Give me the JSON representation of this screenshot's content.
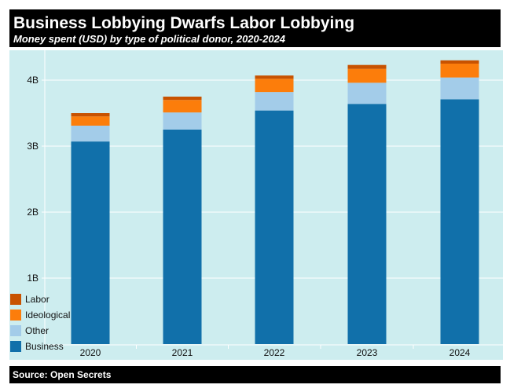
{
  "header": {
    "title": "Business Lobbying Dwarfs Labor Lobbying",
    "subtitle": "Money spent (USD) by type of political donor, 2020-2024"
  },
  "footer": {
    "source": "Source: Open Secrets"
  },
  "chart_data": {
    "type": "bar",
    "stacked": true,
    "title": "Business Lobbying Dwarfs Labor Lobbying",
    "subtitle": "Money spent (USD) by type of political donor, 2020-2024",
    "xlabel": "",
    "ylabel": "",
    "categories": [
      "2020",
      "2021",
      "2022",
      "2023",
      "2024"
    ],
    "ylim": [
      0,
      4.4
    ],
    "yticks": [
      1,
      2,
      3,
      4
    ],
    "ytick_labels": [
      "1B",
      "2B",
      "3B",
      "4B"
    ],
    "unit": "billions USD",
    "grid": true,
    "legend_position": "bottom-left",
    "background": "#cdedef",
    "series": [
      {
        "name": "Business",
        "color": "#1170aa",
        "values": [
          3.07,
          3.25,
          3.54,
          3.64,
          3.71
        ]
      },
      {
        "name": "Other",
        "color": "#a3cce9",
        "values": [
          0.24,
          0.26,
          0.28,
          0.32,
          0.33
        ]
      },
      {
        "name": "Ideological",
        "color": "#fc7d0b",
        "values": [
          0.14,
          0.19,
          0.2,
          0.21,
          0.21
        ]
      },
      {
        "name": "Labor",
        "color": "#c85200",
        "values": [
          0.05,
          0.05,
          0.05,
          0.06,
          0.05
        ]
      }
    ]
  }
}
